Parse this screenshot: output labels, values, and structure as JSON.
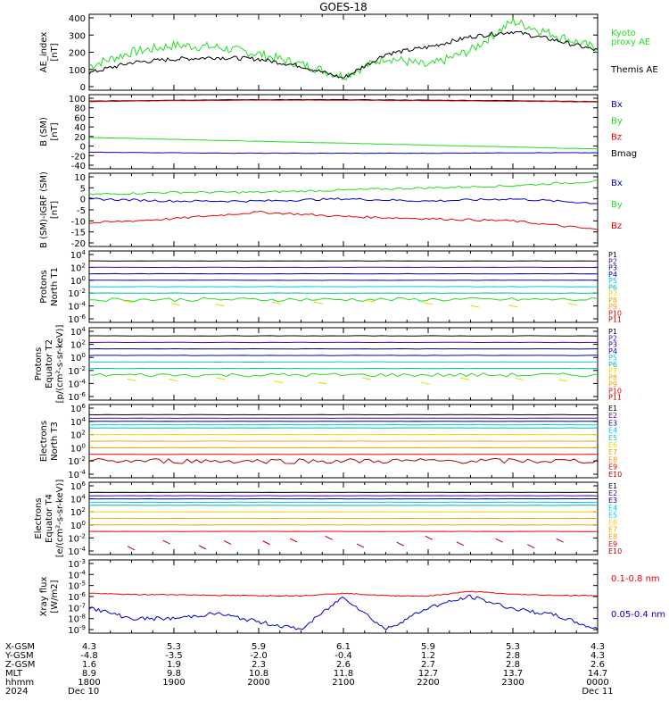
{
  "title": "GOES-18",
  "colors": {
    "black": "#000000",
    "red": "#ee0000",
    "green": "#22dd22",
    "blue": "#0000cc",
    "cyan": "#00c8e8",
    "teal": "#00b8b0",
    "yellow": "#e8d800",
    "orange": "#f0a000",
    "darkred": "#b00000",
    "navy": "#000088",
    "purple": "#5500aa"
  },
  "panels": [
    {
      "id": "ae",
      "ylabel": [
        "AE_index",
        "[nT]"
      ],
      "yticks": [
        "400",
        "300",
        "200",
        "100",
        "0"
      ],
      "legend": [
        {
          "label": "Kyoto",
          "color": "#22dd22"
        },
        {
          "label": "proxy AE",
          "color": "#22dd22"
        },
        {
          "label": "Themis AE",
          "color": "#000000"
        }
      ]
    },
    {
      "id": "bsm",
      "ylabel": [
        "B (SM)",
        "[nT]"
      ],
      "yticks": [
        "100",
        "80",
        "60",
        "40",
        "20",
        "0",
        "-20",
        "-40"
      ],
      "legend": [
        {
          "label": "Bx",
          "color": "#0000cc"
        },
        {
          "label": "By",
          "color": "#22dd22"
        },
        {
          "label": "Bz",
          "color": "#ee0000"
        },
        {
          "label": "Bmag",
          "color": "#000000"
        }
      ]
    },
    {
      "id": "bigrf",
      "ylabel": [
        "B (SM)-IGRF (SM)",
        "[nT]"
      ],
      "yticks": [
        "10",
        "5",
        "0",
        "-5",
        "-10",
        "-15",
        "-20"
      ],
      "legend": [
        {
          "label": "Bx",
          "color": "#0000cc"
        },
        {
          "label": "By",
          "color": "#22dd22"
        },
        {
          "label": "Bz",
          "color": "#ee0000"
        }
      ]
    },
    {
      "id": "pn",
      "ylabel": [
        "Protons",
        "North T1"
      ],
      "yticks": [
        "10^4",
        "10^2",
        "10^0",
        "10^-2",
        "10^-4",
        "10^-6"
      ],
      "legend": [
        "P1",
        "P2",
        "P3",
        "P4",
        "P5",
        "P6",
        "P7",
        "P8",
        "P9",
        "P10",
        "P11"
      ]
    },
    {
      "id": "pe",
      "ylabel": [
        "Protons",
        "Equator T2",
        "[p/(cm²-s-sr-keV)]"
      ],
      "yticks": [
        "10^4",
        "10^2",
        "10^0",
        "10^-2",
        "10^-4",
        "10^-6"
      ],
      "legend": [
        "P1",
        "P2",
        "P3",
        "P4",
        "P5",
        "P6",
        "P7",
        "P8",
        "P9",
        "P10",
        "P11"
      ]
    },
    {
      "id": "en",
      "ylabel": [
        "Electrons",
        "North T3"
      ],
      "yticks": [
        "10^6",
        "10^4",
        "10^2",
        "10^0",
        "10^-2",
        "10^-4"
      ],
      "legend": [
        "E1",
        "E2",
        "E3",
        "E4",
        "E5",
        "E6",
        "E7",
        "E8",
        "E9",
        "E10"
      ]
    },
    {
      "id": "ee",
      "ylabel": [
        "Electrons",
        "Equator T4",
        "[e/(cm²-s-sr-keV)]"
      ],
      "yticks": [
        "10^6",
        "10^4",
        "10^2",
        "10^0",
        "10^-2",
        "10^-4"
      ],
      "legend": [
        "E1",
        "E2",
        "E3",
        "E4",
        "E5",
        "E6",
        "E7",
        "E8",
        "E9",
        "E10"
      ]
    },
    {
      "id": "xray",
      "ylabel": [
        "Xray flux",
        "[W/m2]"
      ],
      "yticks": [
        "10^-3",
        "10^-4",
        "10^-5",
        "10^-6",
        "10^-7",
        "10^-8",
        "10^-9"
      ],
      "legend": [
        {
          "label": "0.1-0.8 nm",
          "color": "#ee0000"
        },
        {
          "label": "0.05-0.4 nm",
          "color": "#0000cc"
        }
      ]
    }
  ],
  "footer": {
    "row_labels": [
      "X-GSM",
      "Y-GSM",
      "Z-GSM",
      "MLT",
      "hhmm",
      "2024"
    ],
    "columns": [
      [
        "4.3",
        "-4.8",
        "1.6",
        "8.9",
        "1800",
        "Dec 10"
      ],
      [
        "5.3",
        "-3.5",
        "1.9",
        "9.8",
        "1900",
        ""
      ],
      [
        "5.9",
        "-2.0",
        "2.3",
        "10.8",
        "2000",
        ""
      ],
      [
        "6.1",
        "-0.4",
        "2.6",
        "11.8",
        "2100",
        ""
      ],
      [
        "5.9",
        "1.2",
        "2.7",
        "12.7",
        "2200",
        ""
      ],
      [
        "5.3",
        "2.8",
        "2.8",
        "13.7",
        "2300",
        ""
      ],
      [
        "4.3",
        "4.3",
        "2.6",
        "14.7",
        "0000",
        "Dec 11"
      ]
    ]
  },
  "chart_data": [
    {
      "type": "line",
      "title": "GOES-18",
      "ylabel": "AE_index [nT]",
      "ylim": [
        0,
        400
      ],
      "x": [
        "1800",
        "1830",
        "1900",
        "1930",
        "2000",
        "2030",
        "2100",
        "2130",
        "2200",
        "2230",
        "2300",
        "2330",
        "0000"
      ],
      "series": [
        {
          "name": "Kyoto proxy AE",
          "values": [
            120,
            200,
            240,
            230,
            190,
            130,
            60,
            170,
            120,
            210,
            380,
            300,
            220
          ]
        },
        {
          "name": "Themis AE",
          "values": [
            80,
            140,
            160,
            170,
            160,
            120,
            50,
            190,
            230,
            290,
            320,
            270,
            210
          ]
        }
      ]
    },
    {
      "type": "line",
      "ylabel": "B (SM) [nT]",
      "ylim": [
        -40,
        100
      ],
      "x": [
        "1800",
        "1900",
        "2000",
        "2100",
        "2200",
        "2300",
        "0000"
      ],
      "series": [
        {
          "name": "Bmag",
          "values": [
            94,
            96,
            97,
            97,
            96,
            95,
            93
          ]
        },
        {
          "name": "Bz",
          "values": [
            93,
            95,
            96,
            96,
            95,
            94,
            92
          ]
        },
        {
          "name": "By",
          "values": [
            18,
            14,
            10,
            6,
            2,
            -2,
            -6
          ]
        },
        {
          "name": "Bx",
          "values": [
            -13,
            -14,
            -15,
            -15,
            -15,
            -14,
            -14
          ]
        }
      ]
    },
    {
      "type": "line",
      "ylabel": "B (SM)-IGRF (SM) [nT]",
      "ylim": [
        -20,
        10
      ],
      "x": [
        "1800",
        "1900",
        "2000",
        "2100",
        "2200",
        "2300",
        "0000"
      ],
      "series": [
        {
          "name": "By",
          "values": [
            2,
            3,
            3,
            4,
            5,
            6,
            8
          ]
        },
        {
          "name": "Bx",
          "values": [
            0,
            -1,
            -1,
            0,
            -1,
            0,
            -2
          ]
        },
        {
          "name": "Bz",
          "values": [
            -11,
            -9,
            -6,
            -8,
            -9,
            -10,
            -14
          ]
        }
      ]
    },
    {
      "type": "line",
      "ylabel": "Protons North T1",
      "yscale": "log",
      "x": [
        "1800",
        "1900",
        "2000",
        "2100",
        "2200",
        "2300",
        "0000"
      ],
      "series": [
        {
          "name": "P1",
          "values": [
            1000,
            1000,
            1000,
            1000,
            1000,
            1000,
            1000
          ]
        },
        {
          "name": "P2",
          "values": [
            100,
            100,
            100,
            100,
            100,
            100,
            100
          ]
        },
        {
          "name": "P3",
          "values": [
            10,
            10,
            10,
            10,
            10,
            10,
            10
          ]
        },
        {
          "name": "P4",
          "values": [
            1,
            1,
            1,
            1,
            1,
            1,
            1
          ]
        },
        {
          "name": "P5",
          "values": [
            0.1,
            0.1,
            0.1,
            0.1,
            0.1,
            0.1,
            0.1
          ]
        },
        {
          "name": "P6",
          "values": [
            0.01,
            0.01,
            0.01,
            0.01,
            0.01,
            0.01,
            0.01
          ]
        },
        {
          "name": "P7",
          "values": [
            0.001,
            0.001,
            0.001,
            0.001,
            0.001,
            0.001,
            0.001
          ]
        }
      ]
    },
    {
      "type": "line",
      "ylabel": "Protons Equator T2 [p/(cm²-s-sr-keV)]",
      "yscale": "log",
      "x": [
        "1800",
        "1900",
        "2000",
        "2100",
        "2200",
        "2300",
        "0000"
      ],
      "series": [
        {
          "name": "P1",
          "values": [
            2000,
            2000,
            2000,
            2000,
            2000,
            2000,
            2000
          ]
        },
        {
          "name": "P2",
          "values": [
            200,
            200,
            200,
            200,
            200,
            200,
            200
          ]
        },
        {
          "name": "P3",
          "values": [
            20,
            20,
            20,
            20,
            20,
            20,
            20
          ]
        },
        {
          "name": "P4",
          "values": [
            2,
            2,
            2,
            2,
            2,
            2,
            2
          ]
        },
        {
          "name": "P5",
          "values": [
            0.2,
            0.2,
            0.2,
            0.2,
            0.2,
            0.2,
            0.2
          ]
        },
        {
          "name": "P6",
          "values": [
            0.02,
            0.02,
            0.02,
            0.02,
            0.02,
            0.02,
            0.02
          ]
        },
        {
          "name": "P7",
          "values": [
            0.002,
            0.002,
            0.002,
            0.002,
            0.002,
            0.002,
            0.002
          ]
        }
      ]
    },
    {
      "type": "line",
      "ylabel": "Electrons North T3",
      "yscale": "log",
      "x": [
        "1800",
        "1900",
        "2000",
        "2100",
        "2200",
        "2300",
        "0000"
      ],
      "series": [
        {
          "name": "E1",
          "values": [
            100000,
            100000,
            100000,
            100000,
            100000,
            100000,
            100000
          ]
        },
        {
          "name": "E2",
          "values": [
            30000,
            30000,
            30000,
            30000,
            30000,
            30000,
            30000
          ]
        },
        {
          "name": "E3",
          "values": [
            10000,
            10000,
            10000,
            10000,
            10000,
            10000,
            10000
          ]
        },
        {
          "name": "E4",
          "values": [
            3000,
            3000,
            3000,
            3000,
            3000,
            3000,
            3000
          ]
        },
        {
          "name": "E5",
          "values": [
            1000,
            1000,
            1000,
            1000,
            1000,
            1000,
            1000
          ]
        },
        {
          "name": "E6",
          "values": [
            100,
            100,
            100,
            100,
            100,
            100,
            100
          ]
        },
        {
          "name": "E7",
          "values": [
            10,
            10,
            10,
            10,
            10,
            10,
            10
          ]
        },
        {
          "name": "E8",
          "values": [
            1,
            1,
            1,
            1,
            1,
            1,
            1
          ]
        },
        {
          "name": "E9",
          "values": [
            0.1,
            0.1,
            0.1,
            0.1,
            0.1,
            0.1,
            0.1
          ]
        },
        {
          "name": "E10",
          "values": [
            0.01,
            0.01,
            0.01,
            0.01,
            0.01,
            0.01,
            0.01
          ]
        }
      ]
    },
    {
      "type": "line",
      "ylabel": "Electrons Equator T4 [e/(cm²-s-sr-keV)]",
      "yscale": "log",
      "x": [
        "1800",
        "1900",
        "2000",
        "2100",
        "2200",
        "2300",
        "0000"
      ],
      "series": [
        {
          "name": "E1",
          "values": [
            100000,
            100000,
            100000,
            100000,
            100000,
            100000,
            100000
          ]
        },
        {
          "name": "E2",
          "values": [
            30000,
            30000,
            30000,
            30000,
            30000,
            30000,
            30000
          ]
        },
        {
          "name": "E3",
          "values": [
            10000,
            10000,
            10000,
            10000,
            10000,
            10000,
            10000
          ]
        },
        {
          "name": "E4",
          "values": [
            3000,
            3000,
            3000,
            3000,
            3000,
            3000,
            3000
          ]
        },
        {
          "name": "E5",
          "values": [
            1000,
            1000,
            1000,
            1000,
            1000,
            1000,
            1000
          ]
        },
        {
          "name": "E6",
          "values": [
            100,
            100,
            100,
            100,
            100,
            100,
            100
          ]
        },
        {
          "name": "E7",
          "values": [
            10,
            10,
            10,
            10,
            10,
            10,
            10
          ]
        },
        {
          "name": "E8",
          "values": [
            1,
            1,
            1,
            1,
            1,
            1,
            1
          ]
        },
        {
          "name": "E9",
          "values": [
            0.1,
            0.1,
            0.1,
            0.1,
            0.1,
            0.1,
            0.1
          ]
        },
        {
          "name": "E10",
          "values": [
            0.01,
            0.01,
            0.01,
            0.01,
            0.01,
            0.01,
            0.01
          ]
        }
      ]
    },
    {
      "type": "line",
      "ylabel": "Xray flux [W/m2]",
      "yscale": "log",
      "x": [
        "1800",
        "1830",
        "1900",
        "1930",
        "2000",
        "2030",
        "2100",
        "2130",
        "2200",
        "2230",
        "2300",
        "2330",
        "0000"
      ],
      "series": [
        {
          "name": "0.1-0.8 nm",
          "values": [
            2e-06,
            1.5e-06,
            1.5e-06,
            1.3e-06,
            1.2e-06,
            1.2e-06,
            2e-06,
            1.2e-06,
            1.1e-06,
            3e-06,
            1.6e-06,
            1.3e-06,
            1.2e-06
          ]
        },
        {
          "name": "0.05-0.4 nm",
          "values": [
            1e-07,
            1e-08,
            1e-08,
            3e-08,
            5e-09,
            1e-09,
            1e-06,
            1e-09,
            1e-07,
            1e-06,
            8e-08,
            2e-08,
            1e-09
          ]
        }
      ]
    }
  ]
}
